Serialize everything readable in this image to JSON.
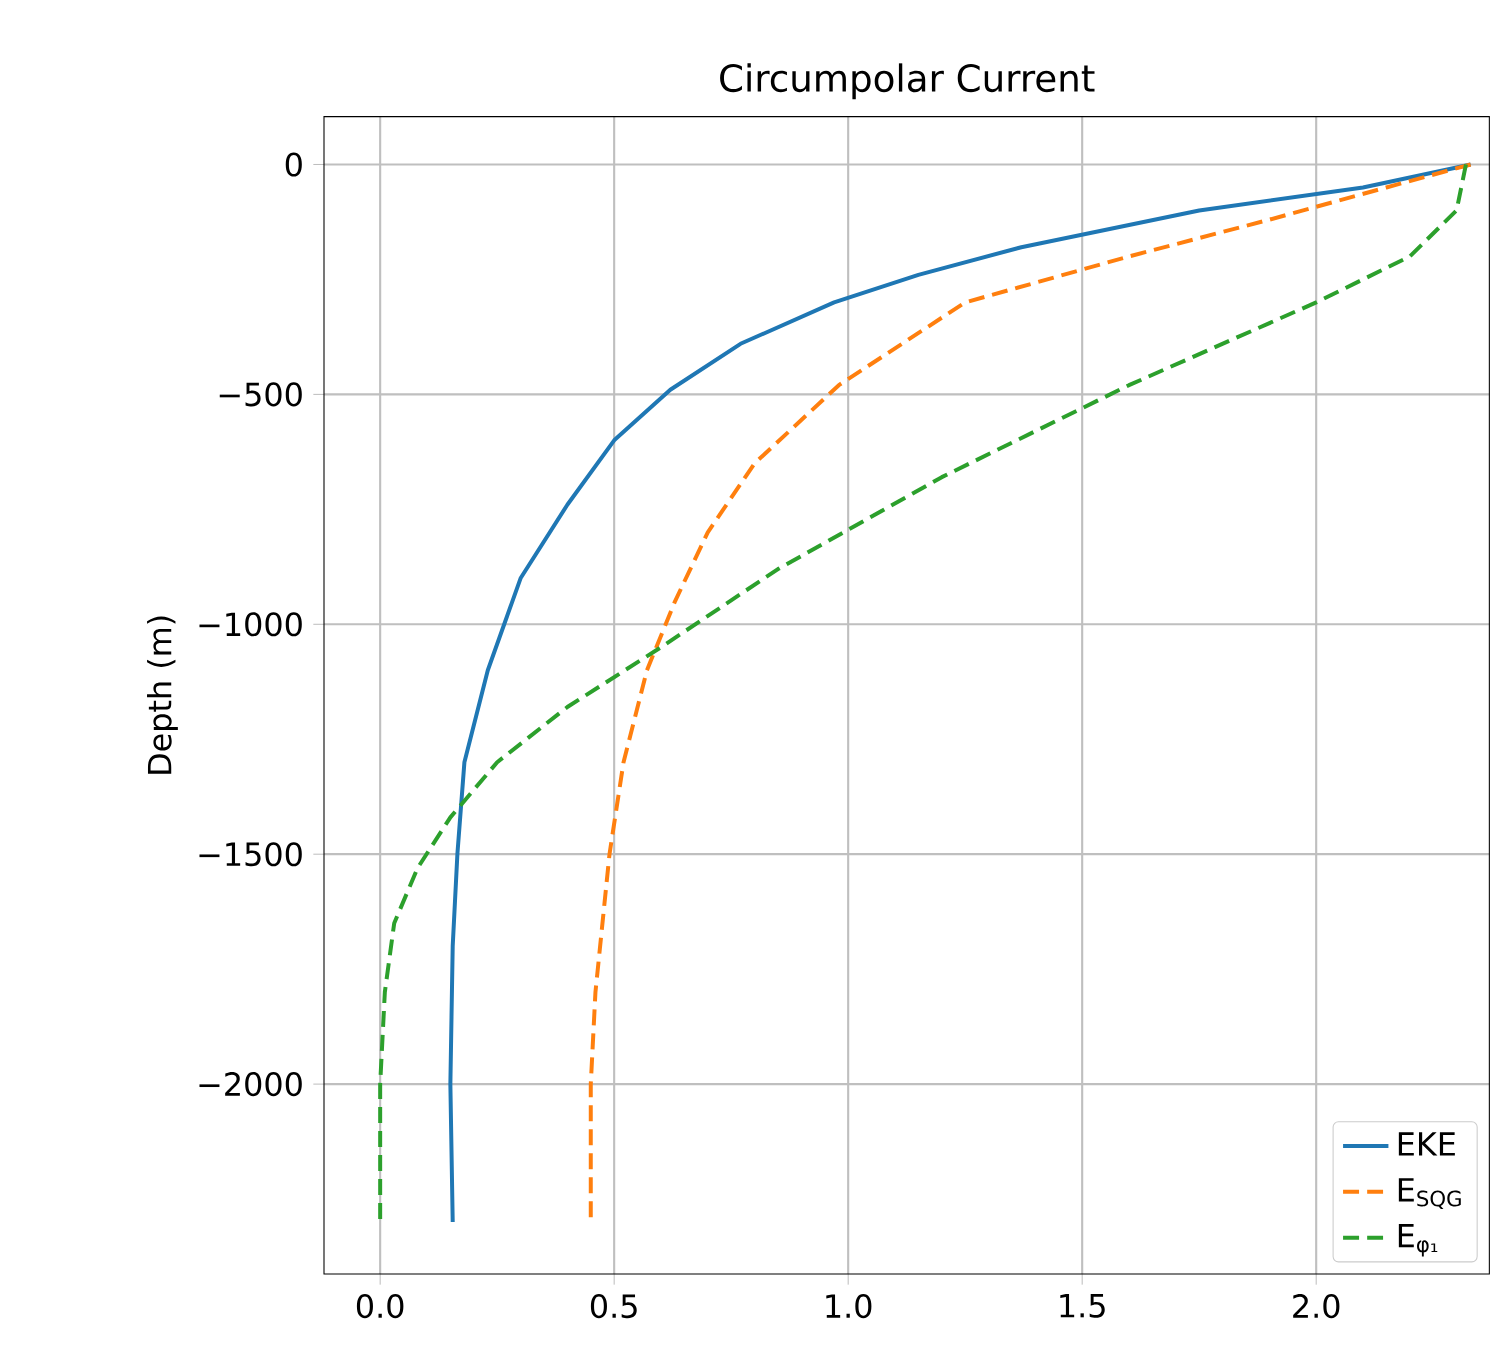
{
  "chart_data": {
    "type": "line",
    "title": "Circumpolar Current",
    "ylabel": "Depth (m)",
    "xlim": [
      -0.12,
      2.37
    ],
    "ylim": [
      -2413,
      104
    ],
    "xticks": [
      {
        "value": 0,
        "label": "0.0"
      },
      {
        "value": 0.5,
        "label": "0.5"
      },
      {
        "value": 1,
        "label": "1.0"
      },
      {
        "value": 1.5,
        "label": "1.5"
      },
      {
        "value": 2,
        "label": "2.0"
      }
    ],
    "yticks": [
      {
        "value": 0,
        "label": "0"
      },
      {
        "value": -500,
        "label": "−500"
      },
      {
        "value": -1000,
        "label": "−1000"
      },
      {
        "value": -1500,
        "label": "−1500"
      },
      {
        "value": -2000,
        "label": "−2000"
      }
    ],
    "grid": true,
    "legend": "bottom right",
    "series": [
      {
        "name": "EKE",
        "color": "#1f77b4",
        "line_style": "solid",
        "x": [
          2.33,
          2.1,
          1.75,
          1.37,
          1.15,
          0.97,
          0.77,
          0.62,
          0.5,
          0.4,
          0.3,
          0.23,
          0.18,
          0.165,
          0.155,
          0.15,
          0.155
        ],
        "values": [
          0,
          -50,
          -100,
          -180,
          -240,
          -300,
          -390,
          -490,
          -600,
          -740,
          -900,
          -1100,
          -1300,
          -1500,
          -1700,
          -2000,
          -2300
        ]
      },
      {
        "name": "E$_{SQG}$",
        "color": "#ff7f0e",
        "line_style": "dashed",
        "x": [
          2.33,
          2.15,
          1.9,
          1.6,
          1.25,
          0.98,
          0.8,
          0.7,
          0.63,
          0.57,
          0.52,
          0.49,
          0.46,
          0.45,
          0.45
        ],
        "values": [
          0,
          -50,
          -120,
          -200,
          -300,
          -480,
          -650,
          -800,
          -950,
          -1100,
          -1300,
          -1500,
          -1800,
          -2000,
          -2300
        ]
      },
      {
        "name": "E$_{φ₁}$",
        "color": "#2ca02c",
        "line_style": "dashed",
        "x": [
          2.32,
          2.3,
          2.2,
          2.0,
          1.6,
          1.2,
          0.85,
          0.6,
          0.4,
          0.25,
          0.15,
          0.08,
          0.03,
          0.01,
          0.0,
          0.0
        ],
        "values": [
          0,
          -100,
          -200,
          -300,
          -480,
          -680,
          -880,
          -1050,
          -1180,
          -1300,
          -1420,
          -1530,
          -1650,
          -1800,
          -2000,
          -2300
        ]
      }
    ]
  }
}
